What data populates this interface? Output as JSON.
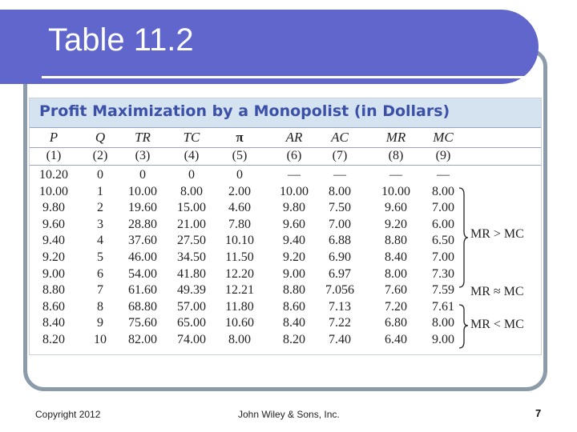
{
  "slide": {
    "title": "Table 11.2"
  },
  "table": {
    "caption": "Profit Maximization by a Monopolist (in Dollars)",
    "headers": [
      "P",
      "Q",
      "TR",
      "TC",
      "π",
      "AR",
      "AC",
      "MR",
      "MC"
    ],
    "column_numbers": [
      "(1)",
      "(2)",
      "(3)",
      "(4)",
      "(5)",
      "(6)",
      "(7)",
      "(8)",
      "(9)"
    ],
    "rows": [
      [
        "10.20",
        "0",
        "0",
        "0",
        "0",
        "—",
        "—",
        "—",
        "—"
      ],
      [
        "10.00",
        "1",
        "10.00",
        "8.00",
        "2.00",
        "10.00",
        "8.00",
        "10.00",
        "8.00"
      ],
      [
        "9.80",
        "2",
        "19.60",
        "15.00",
        "4.60",
        "9.80",
        "7.50",
        "9.60",
        "7.00"
      ],
      [
        "9.60",
        "3",
        "28.80",
        "21.00",
        "7.80",
        "9.60",
        "7.00",
        "9.20",
        "6.00"
      ],
      [
        "9.40",
        "4",
        "37.60",
        "27.50",
        "10.10",
        "9.40",
        "6.88",
        "8.80",
        "6.50"
      ],
      [
        "9.20",
        "5",
        "46.00",
        "34.50",
        "11.50",
        "9.20",
        "6.90",
        "8.40",
        "7.00"
      ],
      [
        "9.00",
        "6",
        "54.00",
        "41.80",
        "12.20",
        "9.00",
        "6.97",
        "8.00",
        "7.30"
      ],
      [
        "8.80",
        "7",
        "61.60",
        "49.39",
        "12.21",
        "8.80",
        "7.056",
        "7.60",
        "7.59"
      ],
      [
        "8.60",
        "8",
        "68.80",
        "57.00",
        "11.80",
        "8.60",
        "7.13",
        "7.20",
        "7.61"
      ],
      [
        "8.40",
        "9",
        "75.60",
        "65.00",
        "10.60",
        "8.40",
        "7.22",
        "6.80",
        "8.00"
      ],
      [
        "8.20",
        "10",
        "82.00",
        "74.00",
        "8.00",
        "8.20",
        "7.40",
        "6.40",
        "9.00"
      ]
    ],
    "annotations": {
      "mr_greater": "MR > MC",
      "mr_approx": "MR ≈ MC",
      "mr_less": "MR < MC"
    }
  },
  "footer": {
    "copyright": "Copyright 2012",
    "publisher": "John Wiley & Sons, Inc.",
    "page_number": "7"
  }
}
